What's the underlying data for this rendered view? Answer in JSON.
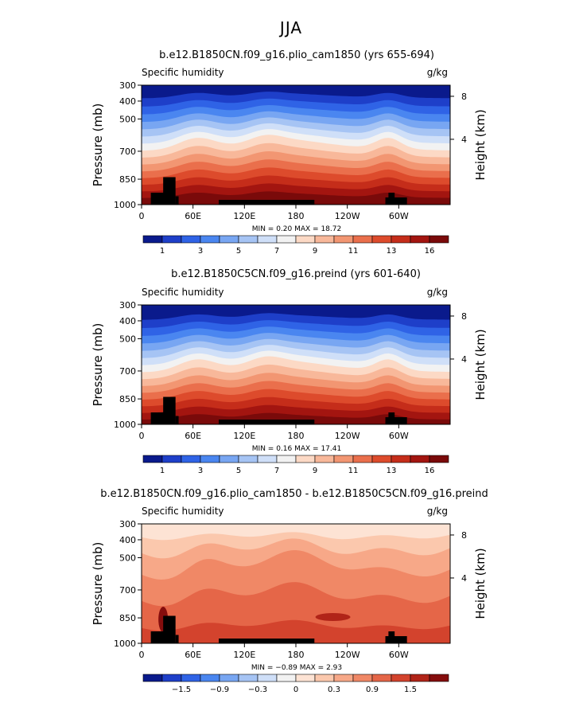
{
  "page_title": "JJA",
  "colors": {
    "humidity_scale": [
      "#0a1a8c",
      "#1e3fc9",
      "#2f63e6",
      "#4a86f0",
      "#78a6f2",
      "#a6c4f4",
      "#cfdff8",
      "#f2f2f2",
      "#fcd9c5",
      "#f8b89a",
      "#f29672",
      "#ea6f4c",
      "#dd4b2c",
      "#c52d1a",
      "#a31510",
      "#7a0a0a"
    ],
    "diff_scale": [
      "#0a1a8c",
      "#1e3fc9",
      "#2f63e6",
      "#4a86f0",
      "#78a6f2",
      "#a6c4f4",
      "#cfdff8",
      "#f2f2f2",
      "#fde3d4",
      "#fbc8ad",
      "#f7a888",
      "#f08866",
      "#e56648",
      "#d3432d",
      "#b12418",
      "#850d0d"
    ],
    "topography": "#000000"
  },
  "chart_data": [
    {
      "type": "heatmap",
      "title": "b.e12.B1850CN.f09_g16.plio_cam1850 (yrs 655-694)",
      "left_label": "Specific humidity",
      "units": "g/kg",
      "ylabel": "Pressure (mb)",
      "ylabel_right": "Height (km)",
      "yticks": [
        "300",
        "400",
        "500",
        "700",
        "850",
        "1000"
      ],
      "yticks_right": [
        "8",
        "4"
      ],
      "xticks": [
        "0",
        "60E",
        "120E",
        "180",
        "120W",
        "60W"
      ],
      "stats": "MIN =    0.20   MAX =   18.72",
      "colorbar_labels": [
        "1",
        "3",
        "5",
        "7",
        "9",
        "11",
        "13",
        "16"
      ],
      "min": 0.2,
      "max": 18.72,
      "levels": 16
    },
    {
      "type": "heatmap",
      "title": "b.e12.B1850C5CN.f09_g16.preind (yrs 601-640)",
      "left_label": "Specific humidity",
      "units": "g/kg",
      "ylabel": "Pressure (mb)",
      "ylabel_right": "Height (km)",
      "yticks": [
        "300",
        "400",
        "500",
        "700",
        "850",
        "1000"
      ],
      "yticks_right": [
        "8",
        "4"
      ],
      "xticks": [
        "0",
        "60E",
        "120E",
        "180",
        "120W",
        "60W"
      ],
      "stats": "MIN =    0.16   MAX =   17.41",
      "colorbar_labels": [
        "1",
        "3",
        "5",
        "7",
        "9",
        "11",
        "13",
        "16"
      ],
      "min": 0.16,
      "max": 17.41,
      "levels": 16
    },
    {
      "type": "heatmap",
      "title": "b.e12.B1850CN.f09_g16.plio_cam1850 - b.e12.B1850C5CN.f09_g16.preind",
      "left_label": "Specific humidity",
      "units": "g/kg",
      "ylabel": "Pressure (mb)",
      "ylabel_right": "Height (km)",
      "yticks": [
        "300",
        "400",
        "500",
        "700",
        "850",
        "1000"
      ],
      "yticks_right": [
        "8",
        "4"
      ],
      "xticks": [
        "0",
        "60E",
        "120E",
        "180",
        "120W",
        "60W"
      ],
      "stats": "MIN =   −0.89   MAX =    2.93",
      "colorbar_labels": [
        "−1.5",
        "−0.9",
        "−0.3",
        "0",
        "0.3",
        "0.9",
        "1.5"
      ],
      "min": -0.89,
      "max": 2.93,
      "levels": 16
    }
  ]
}
